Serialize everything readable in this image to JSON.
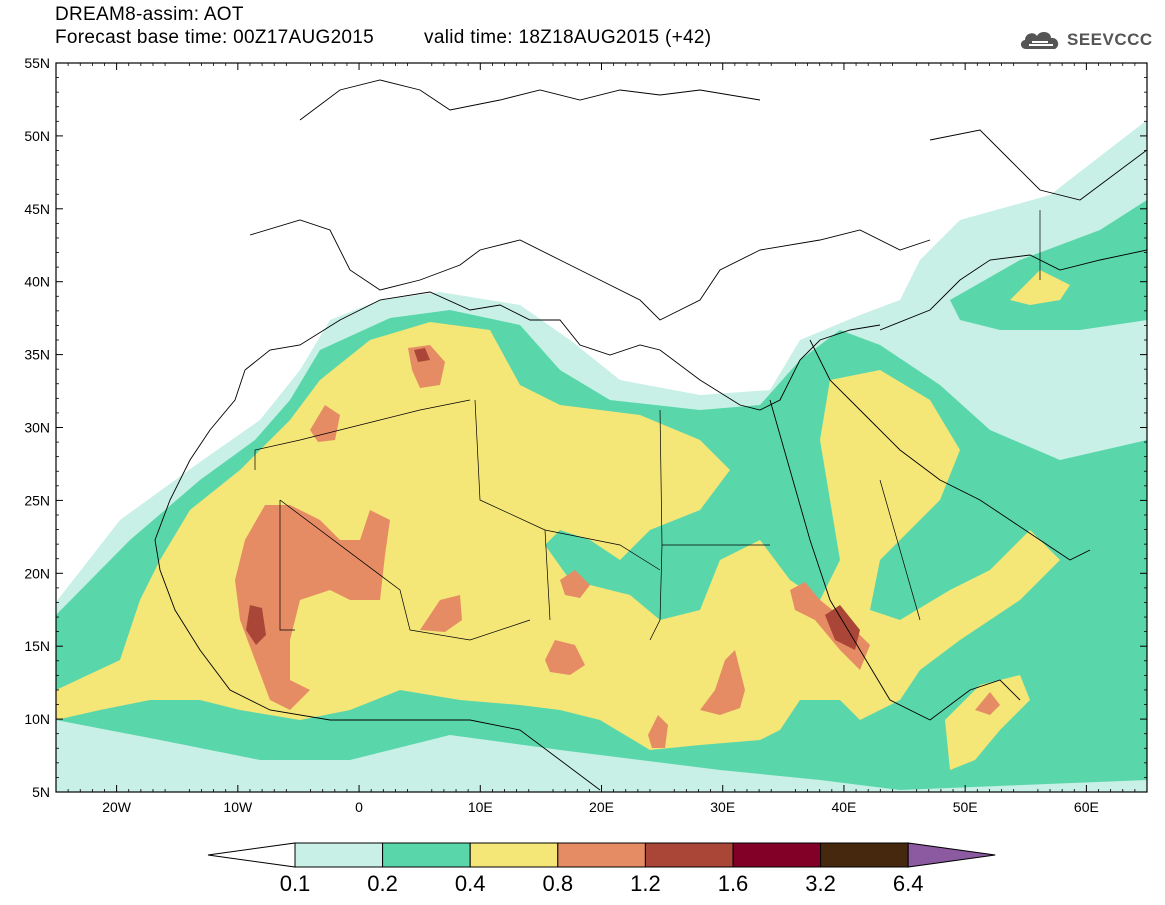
{
  "header": {
    "title": "DREAM8-assim: AOT",
    "base_time": "Forecast base time: 00Z17AUG2015",
    "valid_time": "valid time: 18Z18AUG2015 (+42)",
    "logo_text": "SEEVCCC"
  },
  "map": {
    "lat_labels": [
      "55N",
      "50N",
      "45N",
      "40N",
      "35N",
      "30N",
      "25N",
      "20N",
      "15N",
      "10N",
      "5N"
    ],
    "lon_labels": [
      "20W",
      "10W",
      "0",
      "10E",
      "20E",
      "30E",
      "40E",
      "50E",
      "60E"
    ],
    "extent": {
      "lon_min": -25,
      "lon_max": 65,
      "lat_min": 5,
      "lat_max": 55
    },
    "frame_color": "#000000"
  },
  "legend": {
    "boundaries": [
      "0.1",
      "0.2",
      "0.4",
      "0.8",
      "1.2",
      "1.6",
      "3.2",
      "6.4"
    ],
    "colors": [
      "#ffffff",
      "#c8f0e6",
      "#5ad7aa",
      "#f5e678",
      "#e68c64",
      "#aa4637",
      "#820028",
      "#46280f",
      "#8c5aa0"
    ]
  }
}
